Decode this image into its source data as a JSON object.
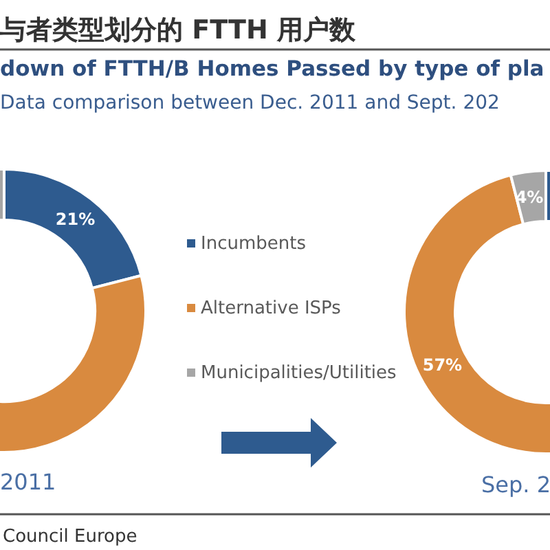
{
  "chart_data": [
    {
      "type": "other",
      "title": "与者类型划分的 FTTH 用户数",
      "subtitle": "down of FTTH/B Homes Passed by type of pla",
      "annotations": [
        "Data comparison between Dec. 2011 and Sept. 202",
        "Council Europe"
      ]
    },
    {
      "type": "donut",
      "title": "2011",
      "categories": [
        "Incumbents",
        "Alternative ISPs",
        "Municipalities/Utilities"
      ],
      "values": [
        21,
        43,
        36
      ],
      "colors": [
        "#2e5b8f",
        "#d98a3f",
        "#a6a6a6"
      ],
      "value_labels": [
        "21%",
        null,
        null
      ],
      "legend": "right"
    },
    {
      "type": "donut",
      "title": "Sep. 2",
      "values": [
        39,
        57,
        4
      ],
      "colors": [
        "#2e5b8f",
        "#d98a3f",
        "#a6a6a6"
      ],
      "value_labels": [
        null,
        "57%",
        "4%"
      ]
    }
  ]
}
